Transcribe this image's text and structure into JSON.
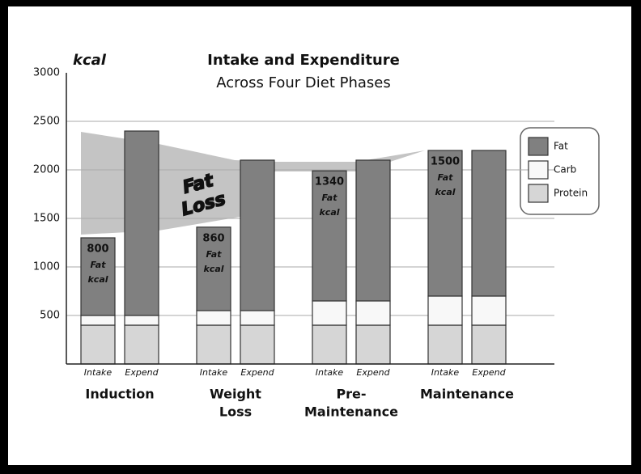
{
  "chart_data": {
    "type": "bar",
    "stacked": true,
    "title": "Intake and Expenditure",
    "subtitle": "Across Four Diet Phases",
    "ylabel": "kcal",
    "categories": [
      "Intake",
      "Expend",
      "Intake",
      "Expend",
      "Intake",
      "Expend",
      "Intake",
      "Expend"
    ],
    "groups": [
      {
        "label_lines": [
          "Induction"
        ]
      },
      {
        "label_lines": [
          "Weight",
          "Loss"
        ]
      },
      {
        "label_lines": [
          "Pre-",
          "Maintenance"
        ]
      },
      {
        "label_lines": [
          "Maintenance"
        ]
      }
    ],
    "series": [
      {
        "name": "Protein",
        "color": "#d6d6d6",
        "values": [
          400,
          400,
          400,
          400,
          400,
          400,
          400,
          400
        ]
      },
      {
        "name": "Carb",
        "color": "#f8f8f8",
        "values": [
          100,
          100,
          150,
          150,
          250,
          250,
          300,
          300
        ]
      },
      {
        "name": "Fat",
        "color": "#808080",
        "values": [
          800,
          1900,
          860,
          1550,
          1340,
          1450,
          1500,
          1500
        ],
        "value_labels": [
          "800",
          null,
          "860",
          null,
          "1340",
          null,
          "1500",
          null
        ]
      }
    ],
    "value_label_unit_lines": [
      "Fat",
      "kcal"
    ],
    "annotation_lines": [
      "Fat",
      "Loss"
    ],
    "ylim": [
      0,
      3000
    ],
    "yticks": [
      500,
      1000,
      1500,
      2000,
      2500,
      3000
    ],
    "grid": true,
    "legend": "right"
  }
}
